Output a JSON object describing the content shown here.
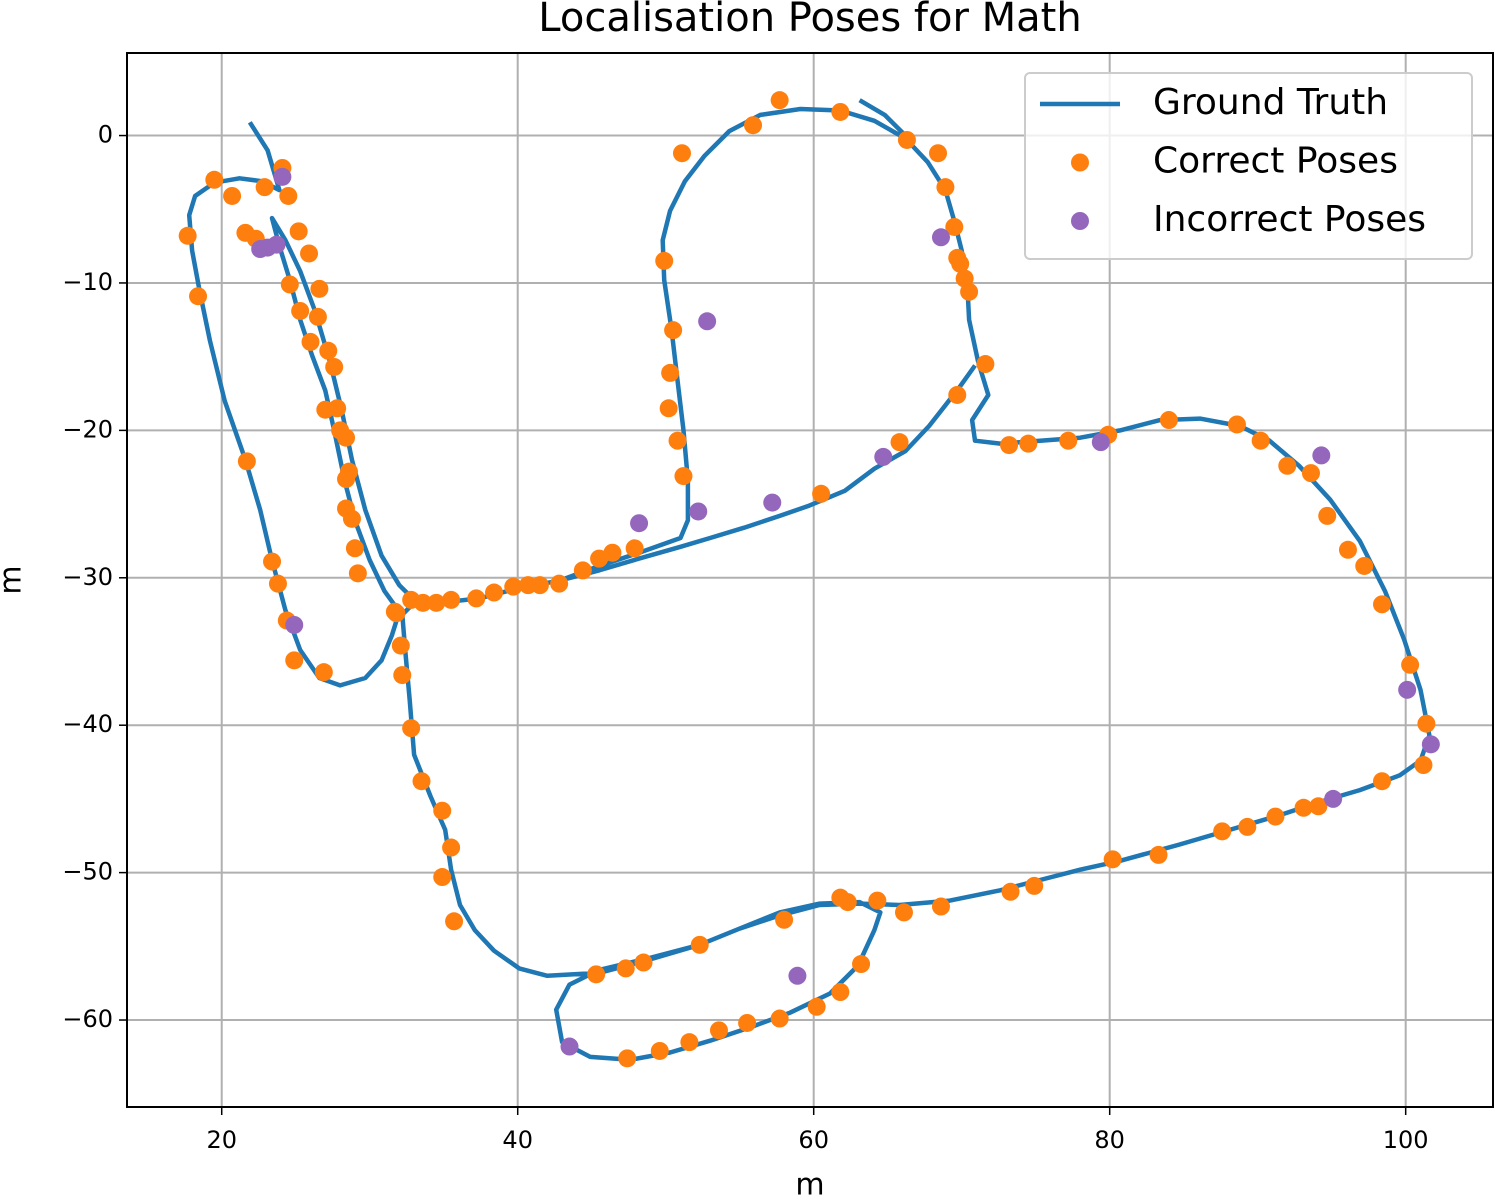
{
  "chart_data": {
    "type": "line",
    "title": "Localisation Poses for Math",
    "x_label": "m",
    "y_label": "m",
    "xlim": [
      13.6,
      105.9
    ],
    "ylim": [
      -65.9,
      5.6
    ],
    "xticks": [
      20,
      40,
      60,
      80,
      100
    ],
    "yticks": [
      0,
      {
        "value": -10,
        "label": "−10"
      },
      {
        "value": -20,
        "label": "−20"
      },
      {
        "value": -30,
        "label": "−30"
      },
      {
        "value": -40,
        "label": "−40"
      },
      {
        "value": -50,
        "label": "−50"
      },
      {
        "value": -60,
        "label": "−60"
      }
    ],
    "grid": true,
    "legend": "upper right",
    "series": [
      {
        "name": "Ground Truth",
        "type": "line",
        "color": "#1f77b4",
        "x": [
          21.9,
          23.1,
          23.9,
          22.7,
          21.2,
          19.5,
          18.2,
          17.8,
          18.0,
          18.5,
          19.2,
          20.2,
          21.6,
          22.6,
          23.4,
          24.3,
          25.3,
          26.6,
          28.0,
          29.7,
          30.8,
          31.5,
          32.0,
          31.0,
          30.0,
          29.0,
          28.3,
          27.6,
          27.0,
          26.1,
          25.3,
          24.6,
          23.9,
          23.4,
          24.3,
          25.3,
          26.3,
          27.3,
          28.1,
          28.8,
          29.7,
          30.8,
          32.0,
          33.0,
          34.7,
          37.4,
          40.1,
          42.8,
          45.5,
          48.2,
          51.0,
          51.5,
          51.5,
          51.2,
          50.8,
          50.4,
          49.9,
          49.8,
          50.3,
          51.3,
          52.6,
          54.3,
          56.4,
          59.1,
          61.8,
          64.1,
          66.2,
          67.7,
          68.9,
          69.5,
          70.0,
          70.4,
          70.5,
          71.1,
          71.8,
          70.7,
          70.9,
          72.6,
          75.3,
          78.0,
          80.7,
          83.4,
          86.1,
          88.8,
          90.8,
          92.8,
          94.9,
          96.9,
          98.6,
          99.9,
          101.0,
          101.6,
          101.0,
          99.6,
          96.9,
          94.2,
          91.5,
          88.1,
          84.7,
          80.7,
          78.0,
          75.3,
          72.6,
          69.2,
          65.8,
          63.1,
          60.4,
          57.7,
          55.0,
          52.3,
          48.9,
          45.5,
          43.5,
          42.6,
          43.0,
          44.9,
          47.6,
          50.3,
          53.0,
          55.7,
          58.4,
          61.1,
          63.0,
          64.1,
          64.5,
          63.1,
          60.4,
          57.7,
          55.0,
          52.3,
          48.9,
          45.5,
          42.0,
          40.1,
          38.4,
          37.1,
          36.1,
          35.5,
          35.1,
          34.1,
          33.0,
          32.7,
          32.4,
          32.2,
          33.0,
          null,
          70.9,
          69.9,
          68.9,
          67.8,
          66.2,
          64.1,
          62.1,
          59.7,
          57.7,
          55.3,
          53.0,
          51.0,
          48.2,
          45.5,
          42.8,
          null,
          63.1,
          64.8,
          66.2
        ],
        "values": [
          0.9,
          -1.0,
          -3.7,
          -3.1,
          -2.9,
          -3.2,
          -4.1,
          -5.4,
          -7.8,
          -10.5,
          -13.9,
          -18.0,
          -22.0,
          -25.4,
          -28.8,
          -32.2,
          -34.9,
          -36.8,
          -37.3,
          -36.8,
          -35.6,
          -33.9,
          -32.3,
          -30.9,
          -28.8,
          -26.1,
          -23.4,
          -20.0,
          -17.3,
          -14.9,
          -12.5,
          -9.8,
          -7.5,
          -5.6,
          -7.1,
          -9.2,
          -11.9,
          -15.3,
          -18.6,
          -22.0,
          -25.4,
          -28.5,
          -30.5,
          -31.5,
          -31.7,
          -31.4,
          -30.7,
          -30.2,
          -29.2,
          -28.3,
          -27.3,
          -26.1,
          -23.4,
          -20.0,
          -16.6,
          -13.2,
          -9.8,
          -7.1,
          -5.1,
          -3.1,
          -1.4,
          0.3,
          1.4,
          1.8,
          1.7,
          1.0,
          -0.2,
          -1.8,
          -3.7,
          -5.8,
          -7.8,
          -10.5,
          -12.5,
          -15.3,
          -17.6,
          -19.3,
          -20.7,
          -20.9,
          -20.7,
          -20.5,
          -20.0,
          -19.3,
          -19.2,
          -19.7,
          -20.7,
          -22.4,
          -24.7,
          -27.5,
          -30.9,
          -34.2,
          -37.6,
          -40.7,
          -42.4,
          -43.4,
          -44.4,
          -45.2,
          -46.1,
          -47.1,
          -48.1,
          -49.2,
          -49.8,
          -50.5,
          -51.2,
          -51.9,
          -52.2,
          -52.1,
          -52.2,
          -52.9,
          -53.8,
          -54.9,
          -55.8,
          -56.6,
          -57.6,
          -59.3,
          -61.5,
          -62.5,
          -62.7,
          -62.2,
          -61.4,
          -60.5,
          -59.5,
          -58.2,
          -56.3,
          -53.9,
          -52.7,
          -52.0,
          -52.1,
          -52.7,
          -53.8,
          -54.9,
          -55.9,
          -56.8,
          -57.0,
          -56.5,
          -55.3,
          -53.9,
          -52.2,
          -49.8,
          -47.1,
          -44.8,
          -42.0,
          -38.3,
          -34.9,
          -32.5,
          -31.7,
          null,
          -15.6,
          -17.0,
          -18.3,
          -19.7,
          -21.4,
          -22.6,
          -24.1,
          -25.1,
          -25.8,
          -26.6,
          -27.3,
          -27.9,
          -28.7,
          -29.5,
          -30.2,
          null,
          2.4,
          1.4,
          0.0
        ]
      },
      {
        "name": "Correct Poses",
        "type": "scatter",
        "color": "#ff7f0e",
        "x": [
          24.1,
          24.5,
          22.9,
          19.5,
          20.7,
          17.7,
          18.4,
          21.6,
          22.3,
          25.2,
          25.9,
          24.6,
          26.6,
          25.3,
          26.5,
          26.0,
          27.2,
          27.6,
          27.0,
          27.8,
          28.0,
          28.4,
          28.6,
          28.4,
          28.4,
          28.8,
          29.0,
          29.2,
          31.8,
          32.8,
          33.6,
          34.5,
          35.5,
          37.2,
          38.4,
          39.7,
          40.7,
          41.5,
          42.8,
          44.4,
          45.5,
          46.4,
          47.9,
          49.9,
          50.5,
          50.3,
          50.2,
          50.8,
          51.2,
          51.1,
          55.9,
          57.7,
          61.8,
          66.3,
          68.4,
          68.9,
          69.5,
          69.7,
          69.9,
          70.2,
          70.5,
          71.6,
          69.7,
          65.8,
          60.5,
          73.2,
          74.5,
          77.2,
          79.9,
          84.0,
          88.6,
          90.2,
          92.0,
          93.6,
          94.7,
          96.1,
          97.2,
          98.4,
          100.3,
          101.4,
          101.2,
          98.4,
          93.1,
          94.1,
          91.2,
          89.3,
          87.6,
          83.3,
          80.2,
          74.9,
          73.3,
          68.6,
          66.1,
          64.3,
          62.3,
          61.8,
          63.2,
          61.8,
          60.2,
          57.7,
          55.5,
          53.6,
          51.6,
          49.6,
          47.4,
          52.3,
          48.5,
          47.3,
          45.3,
          58.0,
          32.1,
          32.2,
          32.8,
          33.5,
          34.9,
          35.5,
          34.9,
          35.7,
          31.7,
          26.9,
          24.9,
          24.4,
          23.8,
          23.4,
          21.7
        ],
        "values": [
          -2.2,
          -4.1,
          -3.5,
          -3.0,
          -4.1,
          -6.8,
          -10.9,
          -6.6,
          -7.0,
          -6.5,
          -8.0,
          -10.1,
          -10.4,
          -11.9,
          -12.3,
          -14.0,
          -14.6,
          -15.7,
          -18.6,
          -18.5,
          -20.0,
          -20.5,
          -22.8,
          -23.3,
          -25.3,
          -26.0,
          -28.0,
          -29.7,
          -32.4,
          -31.5,
          -31.7,
          -31.7,
          -31.5,
          -31.4,
          -31.0,
          -30.6,
          -30.5,
          -30.5,
          -30.4,
          -29.5,
          -28.7,
          -28.3,
          -28.0,
          -8.5,
          -13.2,
          -16.1,
          -18.5,
          -20.7,
          -23.1,
          -1.2,
          0.7,
          2.4,
          1.6,
          -0.3,
          -1.2,
          -3.5,
          -6.2,
          -8.3,
          -8.7,
          -9.7,
          -10.6,
          -15.5,
          -17.6,
          -20.8,
          -24.3,
          -21.0,
          -20.9,
          -20.7,
          -20.3,
          -19.3,
          -19.6,
          -20.7,
          -22.4,
          -22.9,
          -25.8,
          -28.1,
          -29.2,
          -31.8,
          -35.9,
          -39.9,
          -42.7,
          -43.8,
          -45.6,
          -45.5,
          -46.2,
          -46.9,
          -47.2,
          -48.8,
          -49.1,
          -50.9,
          -51.3,
          -52.3,
          -52.7,
          -51.9,
          -52.0,
          -51.7,
          -56.2,
          -58.1,
          -59.1,
          -59.9,
          -60.2,
          -60.7,
          -61.5,
          -62.1,
          -62.6,
          -54.9,
          -56.1,
          -56.5,
          -56.9,
          -53.2,
          -34.6,
          -36.6,
          -40.2,
          -43.8,
          -45.8,
          -48.3,
          -50.3,
          -53.3,
          -32.3,
          -36.4,
          -35.6,
          -32.9,
          -30.4,
          -28.9,
          -22.1
        ]
      },
      {
        "name": "Incorrect Poses",
        "type": "scatter",
        "color": "#9467bd",
        "x": [
          24.1,
          22.6,
          23.1,
          23.7,
          24.9,
          48.2,
          52.2,
          52.8,
          57.2,
          64.7,
          68.6,
          79.4,
          94.3,
          100.1,
          101.7,
          95.1,
          58.9,
          43.5
        ],
        "values": [
          -2.8,
          -7.7,
          -7.6,
          -7.4,
          -33.2,
          -26.3,
          -25.5,
          -12.6,
          -24.9,
          -21.8,
          -6.9,
          -20.8,
          -21.7,
          -37.6,
          -41.3,
          -45.0,
          -57.0,
          -61.8
        ]
      }
    ]
  }
}
